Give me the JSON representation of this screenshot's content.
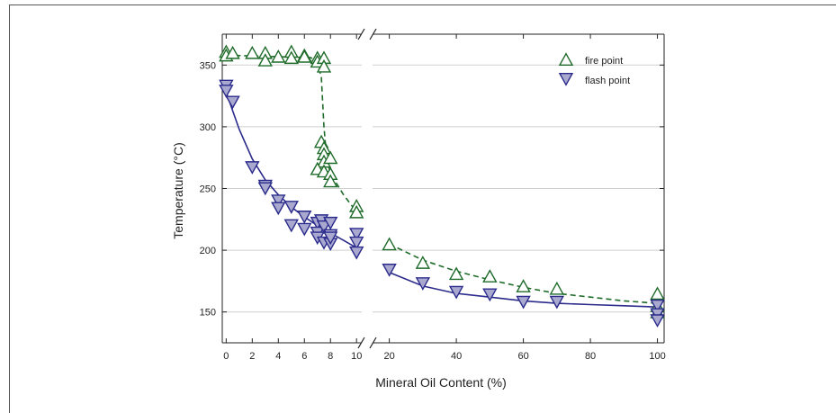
{
  "chart_data": {
    "type": "scatter",
    "xlabel": "Mineral Oil Content (%)",
    "ylabel": "Temperature (°C)",
    "ylim": [
      125,
      375
    ],
    "y_ticks": [
      150,
      200,
      250,
      300,
      350
    ],
    "x_axis_break": true,
    "left_panel": {
      "xlim": [
        -0.3,
        10.4
      ],
      "x_ticks": [
        0,
        2,
        4,
        6,
        8,
        10
      ]
    },
    "right_panel": {
      "xlim": [
        15,
        102
      ],
      "x_ticks": [
        20,
        40,
        60,
        80,
        100
      ]
    },
    "grid": "horizontal",
    "legend_position": "top-right",
    "series": [
      {
        "name": "fire point",
        "marker": "triangle-up",
        "color": "#1f6b2a",
        "fill": "#ffffff",
        "points": [
          [
            0,
            361
          ],
          [
            0,
            358
          ],
          [
            0.5,
            360
          ],
          [
            2,
            360
          ],
          [
            3,
            360
          ],
          [
            3,
            354
          ],
          [
            4,
            357
          ],
          [
            5,
            361
          ],
          [
            5,
            356
          ],
          [
            6,
            358
          ],
          [
            6,
            357
          ],
          [
            7,
            356
          ],
          [
            7,
            353
          ],
          [
            7.5,
            356
          ],
          [
            7.5,
            349
          ],
          [
            7.3,
            288
          ],
          [
            7.5,
            283
          ],
          [
            7.5,
            278
          ],
          [
            7.5,
            272
          ],
          [
            8,
            275
          ],
          [
            7,
            266
          ],
          [
            7.5,
            264
          ],
          [
            8,
            262
          ],
          [
            8,
            256
          ],
          [
            10,
            236
          ],
          [
            10,
            231
          ],
          [
            20,
            205
          ],
          [
            30,
            190
          ],
          [
            40,
            181
          ],
          [
            50,
            179
          ],
          [
            60,
            171
          ],
          [
            70,
            169
          ],
          [
            100,
            165
          ],
          [
            100,
            155
          ],
          [
            100,
            150
          ]
        ],
        "fit": {
          "style": "dashed",
          "points": [
            [
              0,
              358
            ],
            [
              6.5,
              356
            ],
            [
              7.0,
              352
            ],
            [
              7.3,
              340
            ],
            [
              7.5,
              300
            ],
            [
              7.7,
              275
            ],
            [
              8,
              262
            ],
            [
              9,
              245
            ],
            [
              10,
              231
            ],
            [
              20,
              205
            ],
            [
              30,
              192
            ],
            [
              40,
              183
            ],
            [
              50,
              176
            ],
            [
              60,
              170
            ],
            [
              70,
              165
            ],
            [
              80,
              162
            ],
            [
              90,
              159
            ],
            [
              100,
              157
            ]
          ]
        }
      },
      {
        "name": "flash point",
        "marker": "triangle-down",
        "color": "#2b2b8c",
        "fill": "#a9a9d0",
        "points": [
          [
            0,
            333
          ],
          [
            0,
            329
          ],
          [
            0.5,
            320
          ],
          [
            2,
            267
          ],
          [
            3,
            252
          ],
          [
            3,
            250
          ],
          [
            4,
            240
          ],
          [
            4,
            234
          ],
          [
            5,
            235
          ],
          [
            5,
            220
          ],
          [
            6,
            227
          ],
          [
            6,
            217
          ],
          [
            7,
            222
          ],
          [
            7,
            214
          ],
          [
            7,
            210
          ],
          [
            7.3,
            224
          ],
          [
            7.5,
            219
          ],
          [
            7.5,
            206
          ],
          [
            8,
            222
          ],
          [
            8,
            212
          ],
          [
            8,
            205
          ],
          [
            8,
            210
          ],
          [
            10,
            213
          ],
          [
            10,
            206
          ],
          [
            10,
            198
          ],
          [
            20,
            184
          ],
          [
            30,
            173
          ],
          [
            40,
            166
          ],
          [
            50,
            164
          ],
          [
            60,
            158
          ],
          [
            70,
            158
          ],
          [
            100,
            155
          ],
          [
            100,
            148
          ],
          [
            100,
            143
          ]
        ],
        "fit": {
          "style": "solid",
          "points": [
            [
              0,
              328
            ],
            [
              1,
              298
            ],
            [
              2,
              274
            ],
            [
              3,
              257
            ],
            [
              4,
              245
            ],
            [
              5,
              235
            ],
            [
              6,
              227
            ],
            [
              7,
              220
            ],
            [
              8,
              214
            ],
            [
              9,
              208
            ],
            [
              10,
              202
            ],
            [
              20,
              182
            ],
            [
              30,
              171
            ],
            [
              40,
              165
            ],
            [
              50,
              162
            ],
            [
              60,
              159
            ],
            [
              70,
              157
            ],
            [
              80,
              156
            ],
            [
              90,
              155
            ],
            [
              100,
              154
            ]
          ]
        }
      }
    ]
  }
}
